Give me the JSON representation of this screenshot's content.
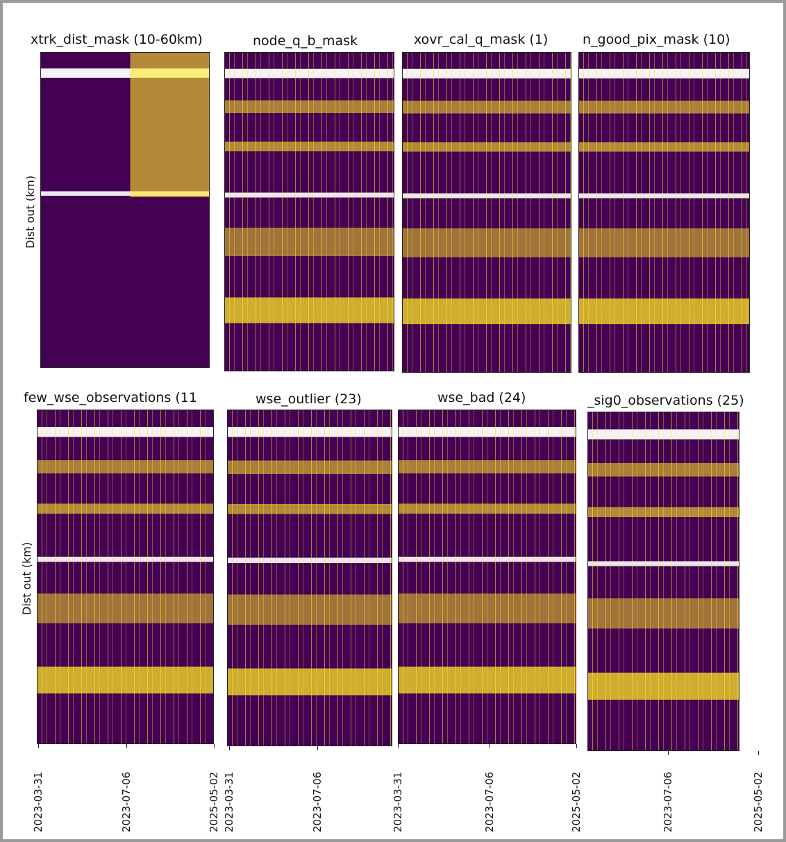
{
  "chart_data": [
    {
      "type": "heatmap",
      "title": "xtrk_dist_mask (10-60km)",
      "ylabel": "Dist out (km)"
    },
    {
      "type": "heatmap",
      "title": "node_q_b_mask"
    },
    {
      "type": "heatmap",
      "title": "xovr_cal_q_mask (1)"
    },
    {
      "type": "heatmap",
      "title": "n_good_pix_mask (10)"
    },
    {
      "type": "heatmap",
      "title": "few_wse_observations (11",
      "ylabel": "Dist out (km)",
      "categories": [
        "2023-03-31",
        "2023-07-06",
        "2025-05-02"
      ]
    },
    {
      "type": "heatmap",
      "title": "wse_outlier (23)",
      "categories": [
        "2023-03-31",
        "2023-07-06"
      ]
    },
    {
      "type": "heatmap",
      "title": "wse_bad (24)",
      "categories": [
        "2023-03-31",
        "2023-07-06",
        "2025-05-02"
      ]
    },
    {
      "type": "heatmap",
      "title": "_sig0_observations (25)",
      "categories": [
        "2023-07-06",
        "2025-05-02"
      ]
    }
  ]
}
